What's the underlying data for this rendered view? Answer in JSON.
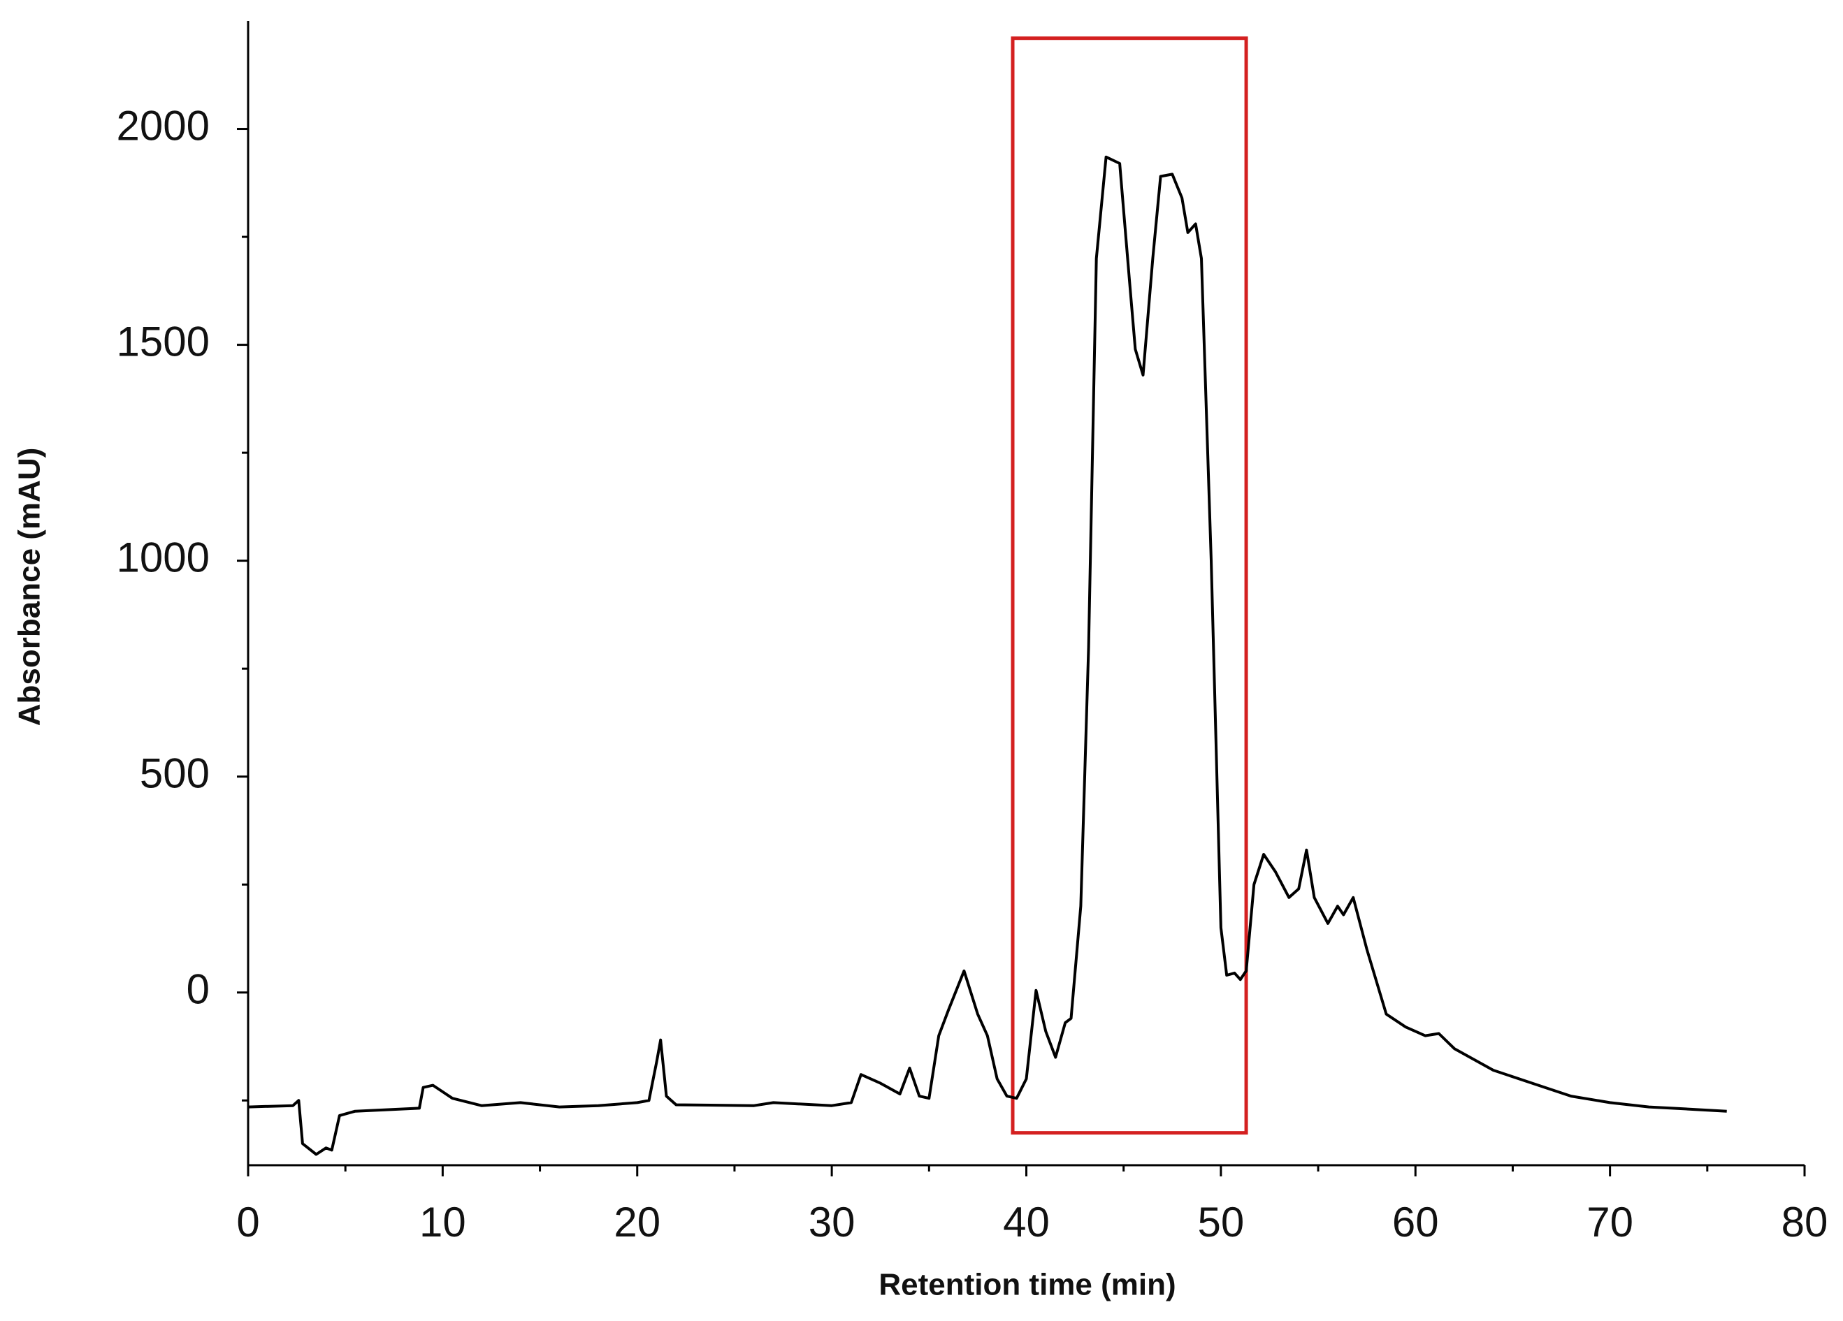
{
  "chart_data": {
    "type": "line",
    "xlabel": "Retention time (min)",
    "ylabel": "Absorbance (mAU)",
    "xlim": [
      0,
      80
    ],
    "xticks": [
      0,
      10,
      20,
      30,
      40,
      50,
      60,
      70,
      80
    ],
    "xminorticks": [
      5,
      15,
      25,
      35,
      45,
      55,
      65,
      75
    ],
    "ylim": [
      -400,
      2250
    ],
    "yticks": [
      0,
      500,
      1000,
      1500,
      2000
    ],
    "yminorticks": [
      -250,
      250,
      750,
      1250,
      1750
    ],
    "color": "#000000",
    "highlight": {
      "xlim": [
        39.3,
        51.3
      ],
      "ylim": [
        -325,
        2210
      ],
      "color": "#d42020"
    },
    "x": [
      0,
      2.3,
      2.6,
      2.8,
      3.5,
      4.0,
      4.3,
      4.7,
      5.5,
      8.8,
      9.0,
      9.5,
      10.5,
      12,
      14,
      16,
      18,
      20,
      20.6,
      21.0,
      21.2,
      21.5,
      22,
      26,
      27,
      30,
      31,
      31.5,
      32.5,
      33.5,
      34,
      34.5,
      35,
      35.5,
      36,
      36.8,
      37.5,
      38,
      38.5,
      39,
      39.5,
      40.0,
      40.5,
      41,
      41.5,
      42,
      42.3,
      42.8,
      43.2,
      43.6,
      44.1,
      44.8,
      45.3,
      45.6,
      46,
      46.5,
      46.9,
      47.5,
      48,
      48.3,
      48.7,
      49,
      49.5,
      50,
      50.3,
      50.7,
      51.0,
      51.3,
      51.7,
      52.2,
      52.8,
      53.5,
      54,
      54.4,
      54.8,
      55.5,
      56,
      56.3,
      56.8,
      57.5,
      58.5,
      59.5,
      60.5,
      61.2,
      62,
      64,
      66,
      68,
      70,
      72,
      74,
      76
    ],
    "values": [
      -265,
      -262,
      -250,
      -350,
      -375,
      -360,
      -365,
      -285,
      -275,
      -268,
      -220,
      -215,
      -245,
      -262,
      -255,
      -265,
      -262,
      -255,
      -250,
      -160,
      -110,
      -240,
      -260,
      -262,
      -255,
      -262,
      -255,
      -190,
      -210,
      -235,
      -175,
      -240,
      -245,
      -100,
      -40,
      50,
      -50,
      -100,
      -200,
      -240,
      -245,
      -200,
      5,
      -90,
      -150,
      -70,
      -60,
      200,
      800,
      1700,
      1935,
      1920,
      1650,
      1490,
      1430,
      1700,
      1890,
      1895,
      1840,
      1760,
      1780,
      1700,
      1000,
      150,
      40,
      45,
      30,
      50,
      250,
      320,
      280,
      220,
      240,
      330,
      220,
      160,
      200,
      180,
      220,
      100,
      -50,
      -80,
      -100,
      -95,
      -130,
      -180,
      -210,
      -240,
      -255,
      -265,
      -270,
      -275
    ]
  }
}
